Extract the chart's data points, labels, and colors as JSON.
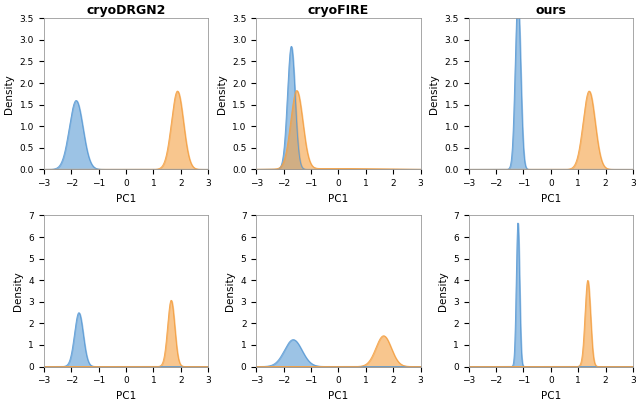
{
  "col_titles": [
    "cryoDRGN2",
    "cryoFIRE",
    "ours"
  ],
  "blue_color": "#5B9BD5",
  "orange_color": "#F4A043",
  "xlabel": "PC1",
  "ylabel": "Density",
  "xlim": [
    -3.0,
    3.0
  ],
  "rows": [
    {
      "ylim": [
        0,
        3.5
      ],
      "yticks": [
        0.0,
        0.5,
        1.0,
        1.5,
        2.0,
        2.5,
        3.0,
        3.5
      ],
      "plots": [
        {
          "blue_mean": -1.82,
          "blue_std": 0.25,
          "orange_mean": 1.88,
          "orange_std": 0.22
        },
        {
          "blue_mean": -1.72,
          "blue_std": 0.14,
          "orange_mean": -1.52,
          "orange_std": 0.22,
          "has_tail_orange": true
        },
        {
          "blue_mean": -1.2,
          "blue_std": 0.1,
          "orange_mean": 1.4,
          "orange_std": 0.22
        }
      ]
    },
    {
      "ylim": [
        0,
        7.0
      ],
      "yticks": [
        0.0,
        1.0,
        2.0,
        3.0,
        4.0,
        5.0,
        6.0,
        7.0
      ],
      "plots": [
        {
          "blue_mean": -1.72,
          "blue_std": 0.16,
          "orange_mean": 1.65,
          "orange_std": 0.13
        },
        {
          "blue_mean": -1.65,
          "blue_std": 0.32,
          "orange_mean": 1.65,
          "orange_std": 0.28
        },
        {
          "blue_mean": -1.2,
          "blue_std": 0.06,
          "orange_mean": 1.35,
          "orange_std": 0.1
        }
      ]
    }
  ]
}
